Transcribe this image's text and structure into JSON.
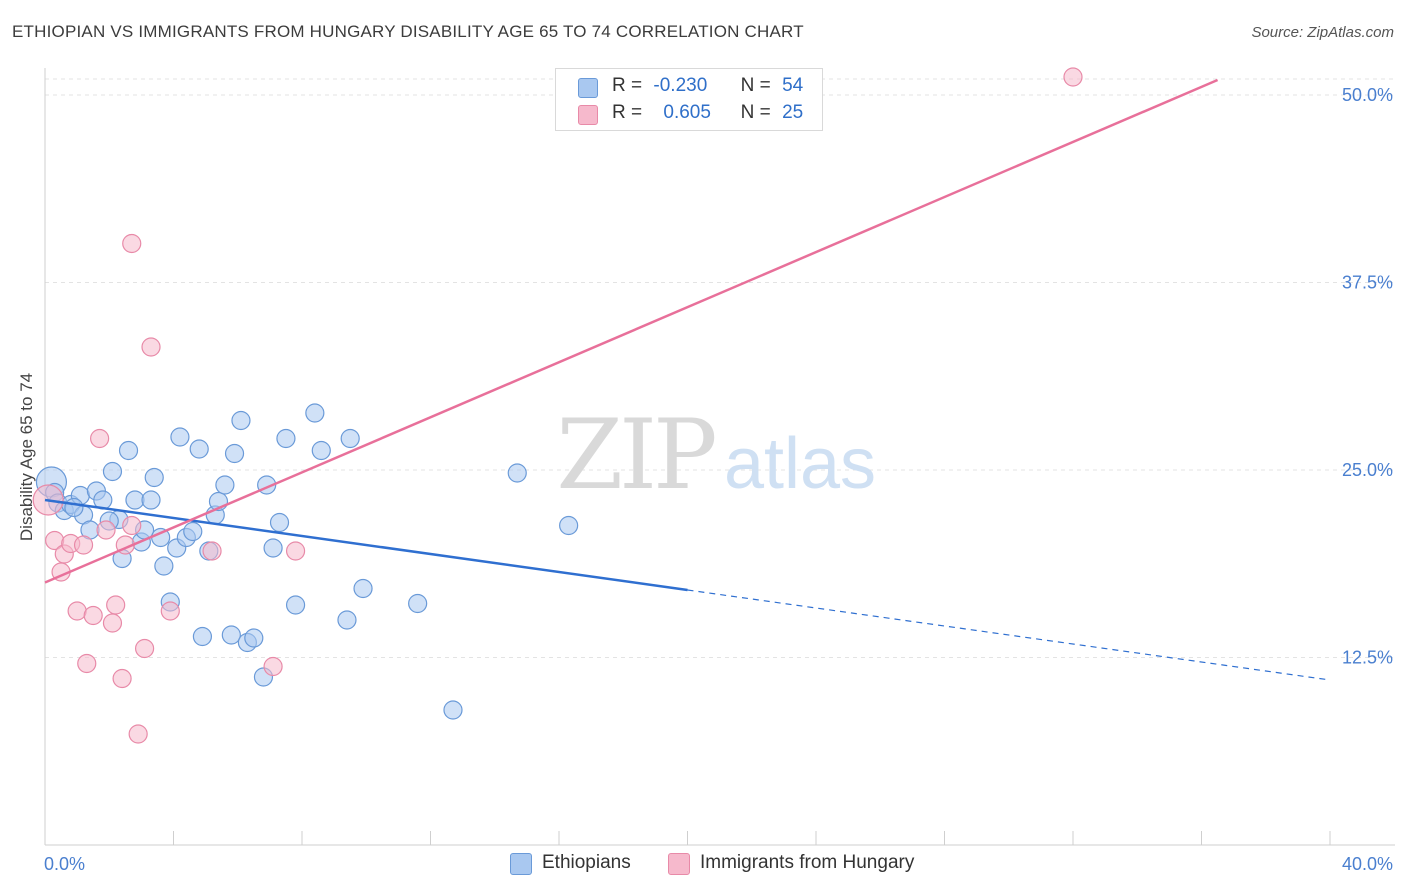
{
  "title": "ETHIOPIAN VS IMMIGRANTS FROM HUNGARY DISABILITY AGE 65 TO 74 CORRELATION CHART",
  "source": "Source: ZipAtlas.com",
  "watermark": {
    "zip": "ZIP",
    "atlas": "atlas"
  },
  "legend": {
    "rows": [
      {
        "r_label": "R =",
        "r_value": "-0.230",
        "n_label": "N =",
        "n_value": "54",
        "color": "#a9c8f0",
        "stroke": "#6a9ad8"
      },
      {
        "r_label": "R =",
        "r_value": "0.605",
        "n_label": "N =",
        "n_value": "25",
        "color": "#f6b9cc",
        "stroke": "#e88aa8"
      }
    ]
  },
  "bottom_legend": {
    "items": [
      {
        "label": "Ethiopians",
        "color": "#a9c8f0"
      },
      {
        "label": "Immigrants from Hungary",
        "color": "#f6b9cc"
      }
    ]
  },
  "chart_data": {
    "type": "scatter",
    "title": "ETHIOPIAN VS IMMIGRANTS FROM HUNGARY DISABILITY AGE 65 TO 74 CORRELATION CHART",
    "xlabel": "",
    "ylabel": "Disability Age 65 to 74",
    "xlim": [
      0,
      40
    ],
    "ylim": [
      0,
      51
    ],
    "x_tick_labels": [
      {
        "value": 0,
        "label": "0.0%"
      },
      {
        "value": 40,
        "label": "40.0%"
      }
    ],
    "y_ticks": [
      {
        "value": 12.5,
        "label": "12.5%"
      },
      {
        "value": 25,
        "label": "25.0%"
      },
      {
        "value": 37.5,
        "label": "37.5%"
      },
      {
        "value": 50,
        "label": "50.0%"
      }
    ],
    "grid": true,
    "series": [
      {
        "name": "Ethiopians",
        "color": "#a9c8f0",
        "stroke": "#6a9ad8",
        "line_color": "#2f6fd0",
        "trend": {
          "x0": 0,
          "y0": 23.0,
          "x1": 20,
          "y1": 17.0,
          "x_dash_end": 40,
          "y_dash_end": 11.0
        },
        "points": [
          {
            "x": 0.2,
            "y": 24.2,
            "s": 15
          },
          {
            "x": 0.3,
            "y": 23.5,
            "s": 9
          },
          {
            "x": 0.4,
            "y": 22.8,
            "s": 9
          },
          {
            "x": 0.6,
            "y": 22.3,
            "s": 9
          },
          {
            "x": 0.8,
            "y": 22.7,
            "s": 9
          },
          {
            "x": 1.1,
            "y": 23.3,
            "s": 9
          },
          {
            "x": 1.2,
            "y": 22.0,
            "s": 9
          },
          {
            "x": 1.4,
            "y": 21.0,
            "s": 9
          },
          {
            "x": 1.6,
            "y": 23.6,
            "s": 9
          },
          {
            "x": 1.8,
            "y": 23.0,
            "s": 9
          },
          {
            "x": 2.1,
            "y": 24.9,
            "s": 9
          },
          {
            "x": 2.3,
            "y": 21.7,
            "s": 9
          },
          {
            "x": 2.4,
            "y": 19.1,
            "s": 9
          },
          {
            "x": 2.6,
            "y": 26.3,
            "s": 9
          },
          {
            "x": 2.8,
            "y": 23.0,
            "s": 9
          },
          {
            "x": 3.0,
            "y": 20.2,
            "s": 9
          },
          {
            "x": 3.1,
            "y": 21.0,
            "s": 9
          },
          {
            "x": 3.3,
            "y": 23.0,
            "s": 9
          },
          {
            "x": 3.4,
            "y": 24.5,
            "s": 9
          },
          {
            "x": 3.6,
            "y": 20.5,
            "s": 9
          },
          {
            "x": 3.7,
            "y": 18.6,
            "s": 9
          },
          {
            "x": 3.9,
            "y": 16.2,
            "s": 9
          },
          {
            "x": 4.1,
            "y": 19.8,
            "s": 9
          },
          {
            "x": 4.2,
            "y": 27.2,
            "s": 9
          },
          {
            "x": 4.4,
            "y": 20.5,
            "s": 9
          },
          {
            "x": 4.6,
            "y": 20.9,
            "s": 9
          },
          {
            "x": 4.8,
            "y": 26.4,
            "s": 9
          },
          {
            "x": 4.9,
            "y": 13.9,
            "s": 9
          },
          {
            "x": 5.1,
            "y": 19.6,
            "s": 9
          },
          {
            "x": 5.3,
            "y": 22.0,
            "s": 9
          },
          {
            "x": 5.4,
            "y": 22.9,
            "s": 9
          },
          {
            "x": 5.6,
            "y": 24.0,
            "s": 9
          },
          {
            "x": 5.8,
            "y": 14.0,
            "s": 9
          },
          {
            "x": 5.9,
            "y": 26.1,
            "s": 9
          },
          {
            "x": 6.1,
            "y": 28.3,
            "s": 9
          },
          {
            "x": 6.3,
            "y": 13.5,
            "s": 9
          },
          {
            "x": 6.5,
            "y": 13.8,
            "s": 9
          },
          {
            "x": 6.8,
            "y": 11.2,
            "s": 9
          },
          {
            "x": 6.9,
            "y": 24.0,
            "s": 9
          },
          {
            "x": 7.1,
            "y": 19.8,
            "s": 9
          },
          {
            "x": 7.3,
            "y": 21.5,
            "s": 9
          },
          {
            "x": 7.5,
            "y": 27.1,
            "s": 9
          },
          {
            "x": 7.8,
            "y": 16.0,
            "s": 9
          },
          {
            "x": 8.4,
            "y": 28.8,
            "s": 9
          },
          {
            "x": 8.6,
            "y": 26.3,
            "s": 9
          },
          {
            "x": 9.4,
            "y": 15.0,
            "s": 9
          },
          {
            "x": 9.5,
            "y": 27.1,
            "s": 9
          },
          {
            "x": 9.9,
            "y": 17.1,
            "s": 9
          },
          {
            "x": 11.6,
            "y": 16.1,
            "s": 9
          },
          {
            "x": 12.7,
            "y": 9.0,
            "s": 9
          },
          {
            "x": 14.7,
            "y": 24.8,
            "s": 9
          },
          {
            "x": 16.3,
            "y": 21.3,
            "s": 9
          },
          {
            "x": 0.9,
            "y": 22.5,
            "s": 9
          },
          {
            "x": 2.0,
            "y": 21.6,
            "s": 9
          }
        ]
      },
      {
        "name": "Immigrants from Hungary",
        "color": "#f6b9cc",
        "stroke": "#e88aa8",
        "line_color": "#e8709a",
        "trend": {
          "x0": 0,
          "y0": 17.5,
          "x1": 36.5,
          "y1": 51.0
        },
        "points": [
          {
            "x": 0.1,
            "y": 23.0,
            "s": 15
          },
          {
            "x": 0.3,
            "y": 20.3,
            "s": 9
          },
          {
            "x": 0.5,
            "y": 18.2,
            "s": 9
          },
          {
            "x": 0.6,
            "y": 19.4,
            "s": 9
          },
          {
            "x": 0.8,
            "y": 20.1,
            "s": 9
          },
          {
            "x": 1.0,
            "y": 15.6,
            "s": 9
          },
          {
            "x": 1.2,
            "y": 20.0,
            "s": 9
          },
          {
            "x": 1.3,
            "y": 12.1,
            "s": 9
          },
          {
            "x": 1.5,
            "y": 15.3,
            "s": 9
          },
          {
            "x": 1.7,
            "y": 27.1,
            "s": 9
          },
          {
            "x": 1.9,
            "y": 21.0,
            "s": 9
          },
          {
            "x": 2.1,
            "y": 14.8,
            "s": 9
          },
          {
            "x": 2.2,
            "y": 16.0,
            "s": 9
          },
          {
            "x": 2.4,
            "y": 11.1,
            "s": 9
          },
          {
            "x": 2.5,
            "y": 20.0,
            "s": 9
          },
          {
            "x": 2.7,
            "y": 21.3,
            "s": 9
          },
          {
            "x": 2.7,
            "y": 40.1,
            "s": 9
          },
          {
            "x": 2.9,
            "y": 7.4,
            "s": 9
          },
          {
            "x": 3.1,
            "y": 13.1,
            "s": 9
          },
          {
            "x": 3.3,
            "y": 33.2,
            "s": 9
          },
          {
            "x": 3.9,
            "y": 15.6,
            "s": 9
          },
          {
            "x": 5.2,
            "y": 19.6,
            "s": 9
          },
          {
            "x": 7.1,
            "y": 11.9,
            "s": 9
          },
          {
            "x": 7.8,
            "y": 19.6,
            "s": 9
          },
          {
            "x": 32.0,
            "y": 51.2,
            "s": 9
          }
        ]
      }
    ]
  }
}
